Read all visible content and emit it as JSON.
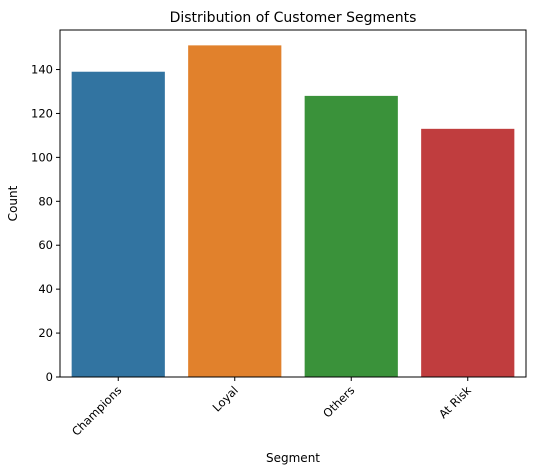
{
  "chart_data": {
    "type": "bar",
    "title": "Distribution of Customer Segments",
    "xlabel": "Segment",
    "ylabel": "Count",
    "categories": [
      "Champions",
      "Loyal",
      "Others",
      "At Risk"
    ],
    "values": [
      139,
      151,
      128,
      113
    ],
    "colors": [
      "#3274a1",
      "#e1812c",
      "#3a923a",
      "#c03d3e"
    ],
    "ylim": [
      0,
      158
    ],
    "yticks": [
      0,
      20,
      40,
      60,
      80,
      100,
      120,
      140
    ],
    "grid": false,
    "legend": "none"
  }
}
